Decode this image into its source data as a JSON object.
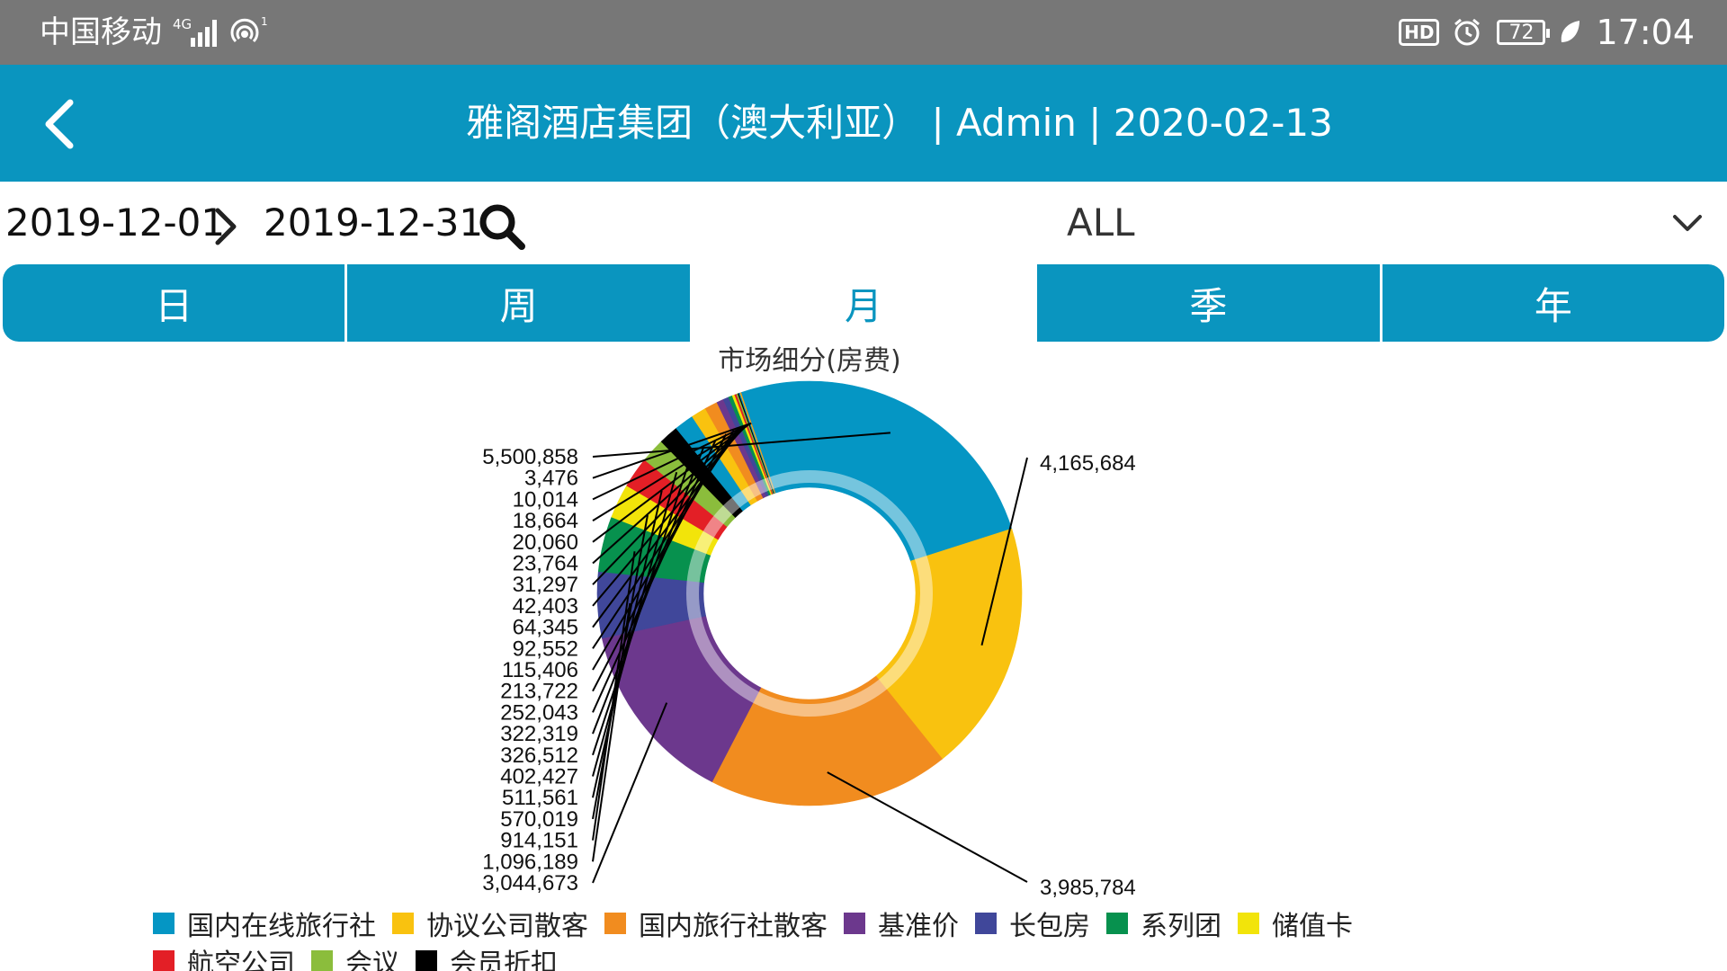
{
  "status": {
    "carrier": "中国移动",
    "network": "4G",
    "battery": "72",
    "time": "17:04",
    "icons": [
      "signal-icon",
      "hotspot-icon",
      "hd-icon",
      "alarm-icon",
      "battery-icon",
      "leaf-icon"
    ]
  },
  "header": {
    "title": "雅阁酒店集团（澳大利亚） | Admin | 2020-02-13",
    "back_icon": "chevron-left-icon"
  },
  "filter": {
    "start_date": "2019-12-01",
    "end_date": "2019-12-31",
    "selected": "ALL"
  },
  "tabs": [
    {
      "label": "日",
      "active": false
    },
    {
      "label": "周",
      "active": false
    },
    {
      "label": "月",
      "active": true
    },
    {
      "label": "季",
      "active": false
    },
    {
      "label": "年",
      "active": false
    }
  ],
  "colors": {
    "accent": "#0a95bf"
  },
  "chart_data": {
    "type": "pie",
    "title": "市场细分(房费)",
    "legend_placement": "bottom",
    "slices": [
      {
        "label": "国内在线旅行社",
        "value": 5500858,
        "color": "#0596c4"
      },
      {
        "label": "协议公司散客",
        "value": 4165684,
        "color": "#f9c20f"
      },
      {
        "label": "国内旅行社散客",
        "value": 3985784,
        "color": "#f18c1f"
      },
      {
        "label": "基准价",
        "value": 3044673,
        "color": "#6c388d"
      },
      {
        "label": "长包房",
        "value": 1096189,
        "color": "#40479a"
      },
      {
        "label": "系列团",
        "value": 914151,
        "color": "#07914e"
      },
      {
        "label": "储值卡",
        "value": 570019,
        "color": "#f2e40a"
      },
      {
        "label": "航空公司",
        "value": 511561,
        "color": "#e31f26"
      },
      {
        "label": "会议",
        "value": 402427,
        "color": "#8bbd3c"
      },
      {
        "label": "会员折扣",
        "value": 326512,
        "color": "#000000"
      },
      {
        "label": "",
        "value": 322319,
        "color": "#0596c4"
      },
      {
        "label": "",
        "value": 252043,
        "color": "#f9c20f"
      },
      {
        "label": "",
        "value": 213722,
        "color": "#f18c1f"
      },
      {
        "label": "",
        "value": 115406,
        "color": "#6c388d"
      },
      {
        "label": "",
        "value": 92552,
        "color": "#40479a"
      },
      {
        "label": "",
        "value": 64345,
        "color": "#07914e"
      },
      {
        "label": "",
        "value": 42403,
        "color": "#f2e40a"
      },
      {
        "label": "",
        "value": 31297,
        "color": "#e31f26"
      },
      {
        "label": "",
        "value": 23764,
        "color": "#8bbd3c"
      },
      {
        "label": "",
        "value": 20060,
        "color": "#000000"
      },
      {
        "label": "",
        "value": 18664,
        "color": "#0596c4"
      },
      {
        "label": "",
        "value": 10014,
        "color": "#f9c20f"
      },
      {
        "label": "",
        "value": 3476,
        "color": "#f18c1f"
      }
    ],
    "data_labels": [
      "5,500,858",
      "3,476",
      "10,014",
      "18,664",
      "20,060",
      "23,764",
      "31,297",
      "42,403",
      "64,345",
      "92,552",
      "115,406",
      "213,722",
      "252,043",
      "322,319",
      "326,512",
      "402,427",
      "511,561",
      "570,019",
      "914,151",
      "1,096,189",
      "3,044,673",
      "4,165,684",
      "3,985,784"
    ]
  }
}
